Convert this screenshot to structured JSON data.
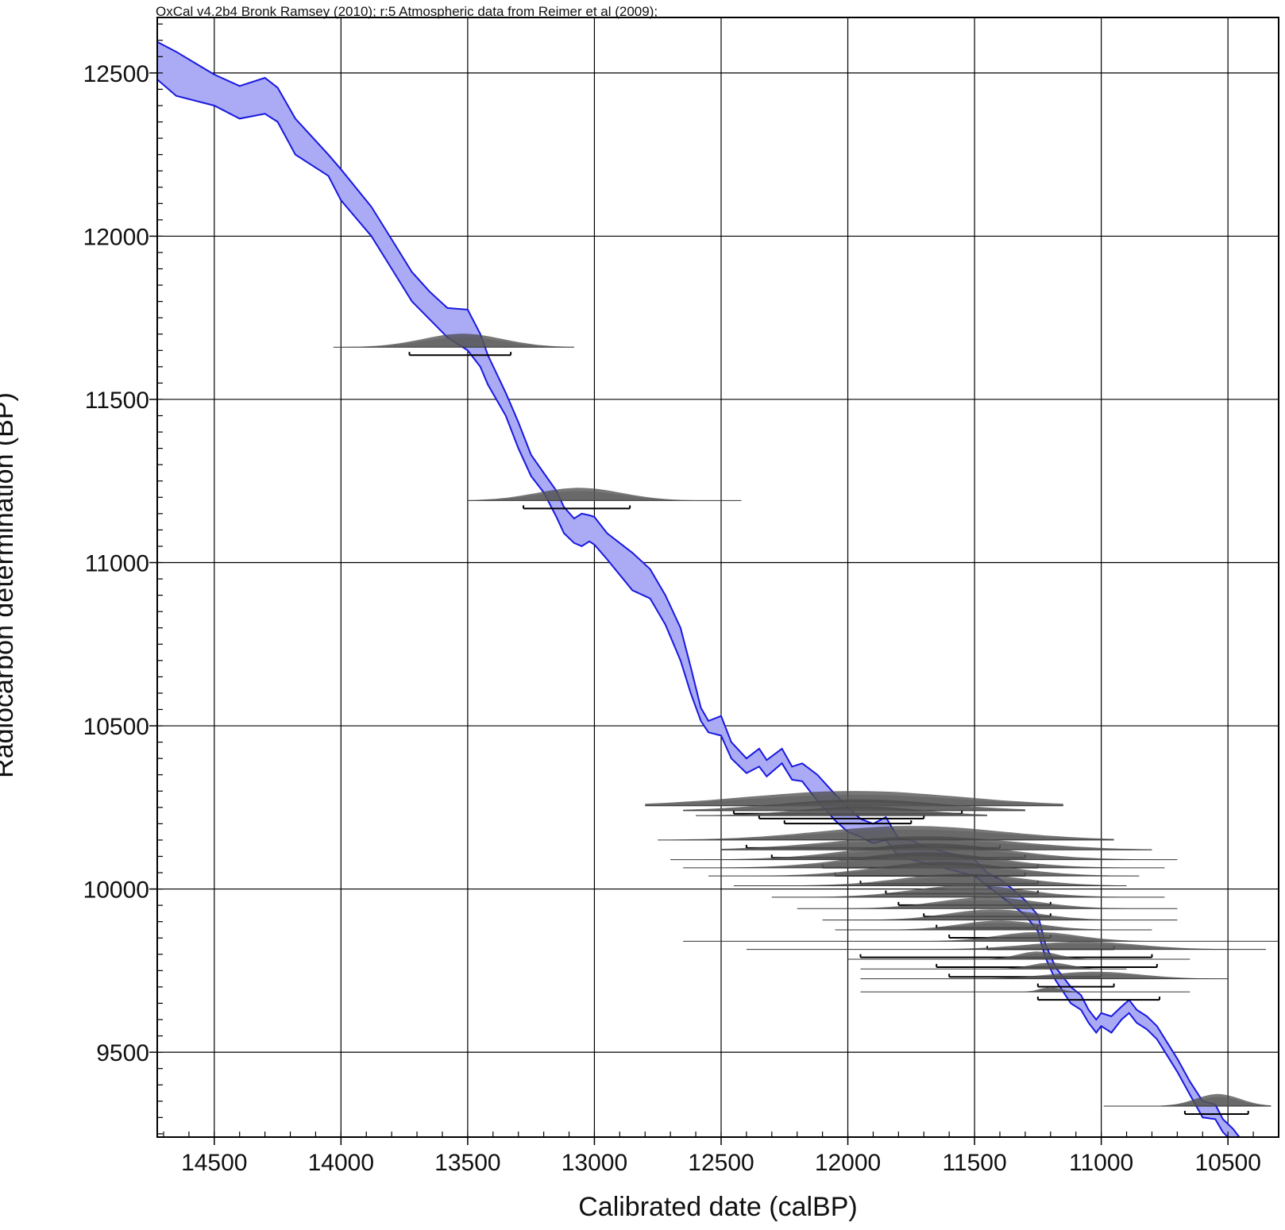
{
  "header": "OxCal v4.2b4 Bronk Ramsey (2010); r:5 Atmospheric data from Reimer et al (2009);",
  "colors": {
    "curve_fill": "#aaaaf5",
    "curve_line": "#1818e0",
    "prob": "#4a4a4a",
    "grid": "#000000"
  },
  "chart_data": {
    "type": "area",
    "title": "",
    "xlabel": "Calibrated date (calBP)",
    "ylabel": "Radiocarbon determination (BP)",
    "x_reversed": true,
    "xlim": [
      14725,
      10300
    ],
    "ylim": [
      9240,
      12670
    ],
    "xticks": [
      14500,
      14000,
      13500,
      13000,
      12500,
      12000,
      11500,
      11000,
      10500
    ],
    "yticks": [
      9500,
      10000,
      10500,
      11000,
      11500,
      12000,
      12500
    ],
    "grid": true,
    "calibration_curve": {
      "x": [
        14725,
        14650,
        14500,
        14400,
        14300,
        14250,
        14180,
        14050,
        14000,
        13880,
        13800,
        13720,
        13650,
        13580,
        13500,
        13450,
        13420,
        13350,
        13300,
        13250,
        13200,
        13150,
        13120,
        13080,
        13050,
        13020,
        13000,
        12950,
        12850,
        12780,
        12720,
        12660,
        12620,
        12580,
        12550,
        12500,
        12460,
        12400,
        12350,
        12320,
        12260,
        12220,
        12180,
        12120,
        12050,
        12000,
        11950,
        11900,
        11850,
        11800,
        11750,
        11700,
        11650,
        11600,
        11550,
        11500,
        11450,
        11400,
        11350,
        11300,
        11250,
        11220,
        11180,
        11120,
        11080,
        11050,
        11020,
        11000,
        10960,
        10920,
        10890,
        10860,
        10820,
        10780,
        10740,
        10700,
        10650,
        10600,
        10550,
        10520,
        10480,
        10440,
        10410,
        10380,
        10300
      ],
      "upper": [
        12595,
        12565,
        12495,
        12460,
        12485,
        12455,
        12360,
        12250,
        12205,
        12090,
        11990,
        11890,
        11830,
        11780,
        11775,
        11700,
        11635,
        11520,
        11430,
        11330,
        11275,
        11220,
        11170,
        11135,
        11150,
        11145,
        11140,
        11090,
        11030,
        10980,
        10900,
        10800,
        10680,
        10555,
        10515,
        10530,
        10450,
        10400,
        10430,
        10395,
        10430,
        10375,
        10385,
        10350,
        10290,
        10250,
        10215,
        10200,
        10220,
        10155,
        10150,
        10130,
        10120,
        10110,
        10100,
        10090,
        10050,
        10030,
        10000,
        9965,
        9920,
        9830,
        9760,
        9700,
        9675,
        9630,
        9600,
        9620,
        9610,
        9640,
        9660,
        9630,
        9610,
        9580,
        9530,
        9480,
        9410,
        9350,
        9340,
        9295,
        9265,
        9225,
        9225,
        9190,
        9120
      ],
      "lower": [
        12480,
        12430,
        12400,
        12360,
        12375,
        12350,
        12250,
        12185,
        12110,
        12000,
        11900,
        11800,
        11745,
        11690,
        11650,
        11600,
        11545,
        11450,
        11350,
        11265,
        11215,
        11140,
        11090,
        11060,
        11050,
        11065,
        11055,
        11010,
        10915,
        10890,
        10810,
        10700,
        10600,
        10515,
        10480,
        10470,
        10400,
        10355,
        10375,
        10345,
        10385,
        10335,
        10330,
        10270,
        10210,
        10175,
        10160,
        10140,
        10150,
        10100,
        10090,
        10080,
        10070,
        10060,
        10050,
        10040,
        10010,
        9980,
        9950,
        9920,
        9870,
        9790,
        9720,
        9650,
        9630,
        9590,
        9560,
        9580,
        9560,
        9600,
        9620,
        9590,
        9570,
        9540,
        9490,
        9440,
        9370,
        9300,
        9295,
        9255,
        9225,
        9200,
        9195,
        9150,
        9090
      ]
    },
    "probability_distributions": [
      {
        "y": 11660,
        "x_from": 14030,
        "x_to": 13080,
        "peak_from": 13720,
        "peak_to": 13320,
        "height": 38,
        "range": [
          13730,
          13330
        ]
      },
      {
        "y": 11190,
        "x_from": 13500,
        "x_to": 12420,
        "peak_from": 13270,
        "peak_to": 12850,
        "height": 36,
        "range": [
          13280,
          12860
        ]
      },
      {
        "y": 10255,
        "x_from": 12800,
        "x_to": 11150,
        "peak_from": 12500,
        "peak_to": 11450,
        "height": 42,
        "range": [
          12450,
          11550
        ]
      },
      {
        "y": 10240,
        "x_from": 12650,
        "x_to": 11300,
        "peak_from": 12350,
        "peak_to": 11550,
        "height": 32,
        "range": [
          12350,
          11700
        ]
      },
      {
        "y": 10225,
        "x_from": 12600,
        "x_to": 11450,
        "peak_from": 12250,
        "peak_to": 11650,
        "height": 26,
        "range": [
          12250,
          11750
        ]
      },
      {
        "y": 10150,
        "x_from": 12750,
        "x_to": 10950,
        "peak_from": 12200,
        "peak_to": 11300,
        "height": 40,
        "range": [
          12400,
          11400
        ]
      },
      {
        "y": 10120,
        "x_from": 12500,
        "x_to": 10800,
        "peak_from": 12150,
        "peak_to": 11250,
        "height": 38,
        "range": [
          12300,
          11300
        ]
      },
      {
        "y": 10090,
        "x_from": 12700,
        "x_to": 10700,
        "peak_from": 12050,
        "peak_to": 11300,
        "height": 46,
        "range": [
          12100,
          11250
        ]
      },
      {
        "y": 10065,
        "x_from": 12650,
        "x_to": 10750,
        "peak_from": 12050,
        "peak_to": 11350,
        "height": 44,
        "range": [
          12050,
          11300
        ]
      },
      {
        "y": 10040,
        "x_from": 12550,
        "x_to": 10850,
        "peak_from": 11950,
        "peak_to": 11300,
        "height": 40,
        "range": [
          11950,
          11250
        ]
      },
      {
        "y": 10010,
        "x_from": 12450,
        "x_to": 10900,
        "peak_from": 11850,
        "peak_to": 11250,
        "height": 34,
        "range": [
          11850,
          11250
        ]
      },
      {
        "y": 9975,
        "x_from": 12300,
        "x_to": 10750,
        "peak_from": 11800,
        "peak_to": 11250,
        "height": 34,
        "range": [
          11800,
          11200
        ]
      },
      {
        "y": 9940,
        "x_from": 12200,
        "x_to": 10700,
        "peak_from": 11700,
        "peak_to": 11200,
        "height": 32,
        "range": [
          11700,
          11200
        ]
      },
      {
        "y": 9905,
        "x_from": 12100,
        "x_to": 10700,
        "peak_from": 11650,
        "peak_to": 11200,
        "height": 30,
        "range": [
          11650,
          11250
        ]
      },
      {
        "y": 9875,
        "x_from": 12050,
        "x_to": 10800,
        "peak_from": 11600,
        "peak_to": 11200,
        "height": 26,
        "range": [
          11600,
          11200
        ]
      },
      {
        "y": 9840,
        "x_from": 12650,
        "x_to": 10300,
        "peak_from": 11450,
        "peak_to": 11050,
        "height": 26,
        "range": [
          11450,
          10950
        ]
      },
      {
        "y": 9815,
        "x_from": 12400,
        "x_to": 10350,
        "peak_from": 11350,
        "peak_to": 10800,
        "height": 22,
        "range": [
          11950,
          10800
        ]
      },
      {
        "y": 9785,
        "x_from": 12000,
        "x_to": 10650,
        "peak_from": 11350,
        "peak_to": 11150,
        "height": 22,
        "range": [
          11650,
          10780
        ]
      },
      {
        "y": 9755,
        "x_from": 11950,
        "x_to": 10900,
        "peak_from": 11300,
        "peak_to": 11100,
        "height": 18,
        "range": [
          11600,
          11000
        ]
      },
      {
        "y": 9725,
        "x_from": 11950,
        "x_to": 10500,
        "peak_from": 11250,
        "peak_to": 10800,
        "height": 20,
        "range": [
          11250,
          10950
        ]
      },
      {
        "y": 9685,
        "x_from": 11950,
        "x_to": 10650,
        "peak_from": 11250,
        "peak_to": 11150,
        "height": 14,
        "range": [
          11250,
          10770
        ]
      },
      {
        "y": 9335,
        "x_from": 10990,
        "x_to": 10330,
        "peak_from": 10650,
        "peak_to": 10430,
        "height": 34,
        "range": [
          10670,
          10420
        ]
      }
    ]
  }
}
